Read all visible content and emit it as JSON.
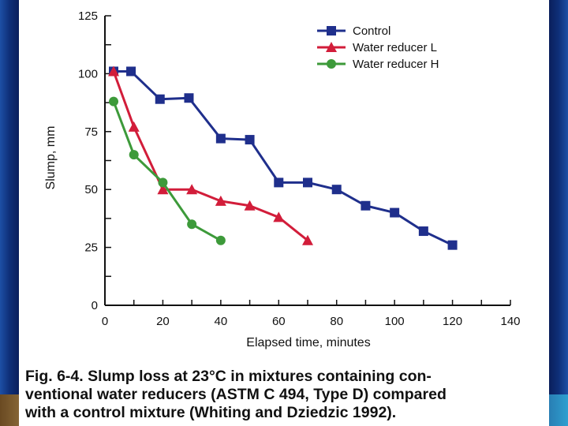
{
  "chart_data": {
    "type": "line",
    "xlabel": "Elapsed time, minutes",
    "ylabel": "Slump, mm",
    "xlim": [
      0,
      140
    ],
    "ylim": [
      0,
      125
    ],
    "xticks": [
      0,
      20,
      40,
      60,
      80,
      100,
      120,
      140
    ],
    "yticks": [
      0,
      25,
      50,
      75,
      100,
      125
    ],
    "legend_position": "top-right",
    "series": [
      {
        "name": "Control",
        "marker": "square",
        "color": "#1f2f8c",
        "x": [
          3,
          9,
          19,
          29,
          40,
          50,
          60,
          70,
          80,
          90,
          100,
          110,
          120
        ],
        "y": [
          101,
          101,
          89,
          89.5,
          72,
          71.5,
          53,
          53,
          50,
          43,
          40,
          32,
          26
        ]
      },
      {
        "name": "Water reducer L",
        "marker": "triangle",
        "color": "#d21d3a",
        "x": [
          3,
          10,
          20,
          30,
          40,
          50,
          60,
          70
        ],
        "y": [
          101,
          77,
          50,
          50,
          45,
          43,
          38,
          28
        ]
      },
      {
        "name": "Water reducer H",
        "marker": "circle",
        "color": "#3d9a3a",
        "x": [
          3,
          10,
          20,
          30,
          40
        ],
        "y": [
          88,
          65,
          53,
          35,
          28
        ]
      }
    ]
  },
  "caption": {
    "lines": [
      "Fig. 6-4. Slump loss at 23°C in mixtures containing con-",
      "ventional water reducers (ASTM C 494, Type D) compared",
      "with a control mixture (Whiting and Dziedzic 1992)."
    ]
  }
}
